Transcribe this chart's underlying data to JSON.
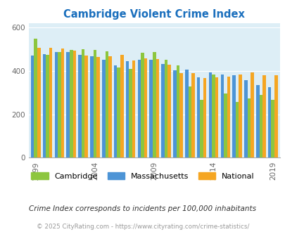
{
  "title": "Cambridge Violent Crime Index",
  "years": [
    1999,
    2000,
    2001,
    2002,
    2003,
    2004,
    2005,
    2006,
    2007,
    2008,
    2009,
    2010,
    2011,
    2012,
    2013,
    2014,
    2015,
    2016,
    2017,
    2018,
    2019
  ],
  "cambridge": [
    548,
    473,
    488,
    497,
    500,
    498,
    490,
    415,
    408,
    485,
    488,
    450,
    425,
    330,
    267,
    383,
    295,
    258,
    272,
    290,
    268
  ],
  "massachusetts": [
    470,
    477,
    488,
    488,
    473,
    468,
    453,
    427,
    445,
    450,
    453,
    432,
    403,
    405,
    370,
    393,
    382,
    380,
    358,
    335,
    325
  ],
  "national": [
    506,
    507,
    504,
    495,
    472,
    463,
    469,
    474,
    447,
    458,
    455,
    430,
    390,
    390,
    368,
    372,
    373,
    383,
    394,
    381,
    379
  ],
  "cambridge_color": "#8dc63f",
  "massachusetts_color": "#4d94d6",
  "national_color": "#f5a623",
  "bg_color": "#ddeef6",
  "ylabel_values": [
    0,
    200,
    400,
    600
  ],
  "ylim": [
    0,
    620
  ],
  "subtitle": "Crime Index corresponds to incidents per 100,000 inhabitants",
  "footer": "© 2025 CityRating.com - https://www.cityrating.com/crime-statistics/",
  "legend_labels": [
    "Cambridge",
    "Massachusetts",
    "National"
  ],
  "title_color": "#1a6fbd",
  "subtitle_color": "#333333",
  "footer_color": "#999999",
  "tick_years": [
    1999,
    2004,
    2009,
    2014,
    2019
  ]
}
